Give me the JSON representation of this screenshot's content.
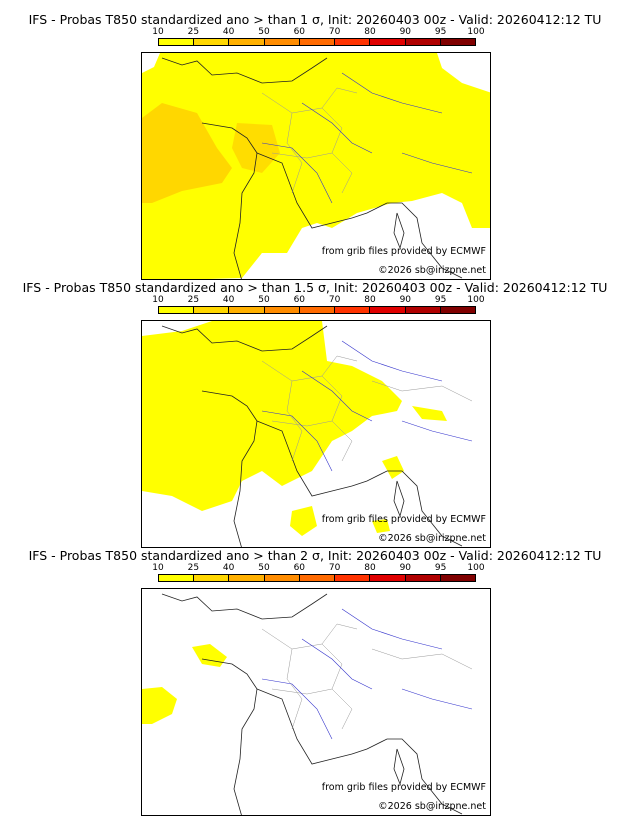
{
  "legend": {
    "labels": [
      "10",
      "25",
      "40",
      "50",
      "60",
      "70",
      "80",
      "90",
      "95",
      "100"
    ],
    "colors": [
      "#ffff00",
      "#ffd700",
      "#ffb000",
      "#ff8c00",
      "#ff6a00",
      "#ff3300",
      "#e00000",
      "#b00000",
      "#800000",
      "#500000"
    ]
  },
  "panels": [
    {
      "title": "IFS - Probas T850  standardized ano > than 1 σ, Init: 20260403 00z - Valid: 20260412:12 TU",
      "grib_credit": "from grib files provided by ECMWF",
      "copyright": "©2026 sb@irizpne.net"
    },
    {
      "title": "IFS - Probas T850  standardized ano > than 1.5 σ, Init: 20260403 00z - Valid: 20260412:12 TU",
      "grib_credit": "from grib files provided by ECMWF",
      "copyright": "©2026 sb@irizpne.net"
    },
    {
      "title": "IFS - Probas T850  standardized ano > than 2 σ, Init: 20260403 00z - Valid: 20260412:12 TU",
      "grib_credit": "from grib files provided by ECMWF",
      "copyright": "©2026 sb@irizpne.net"
    }
  ]
}
